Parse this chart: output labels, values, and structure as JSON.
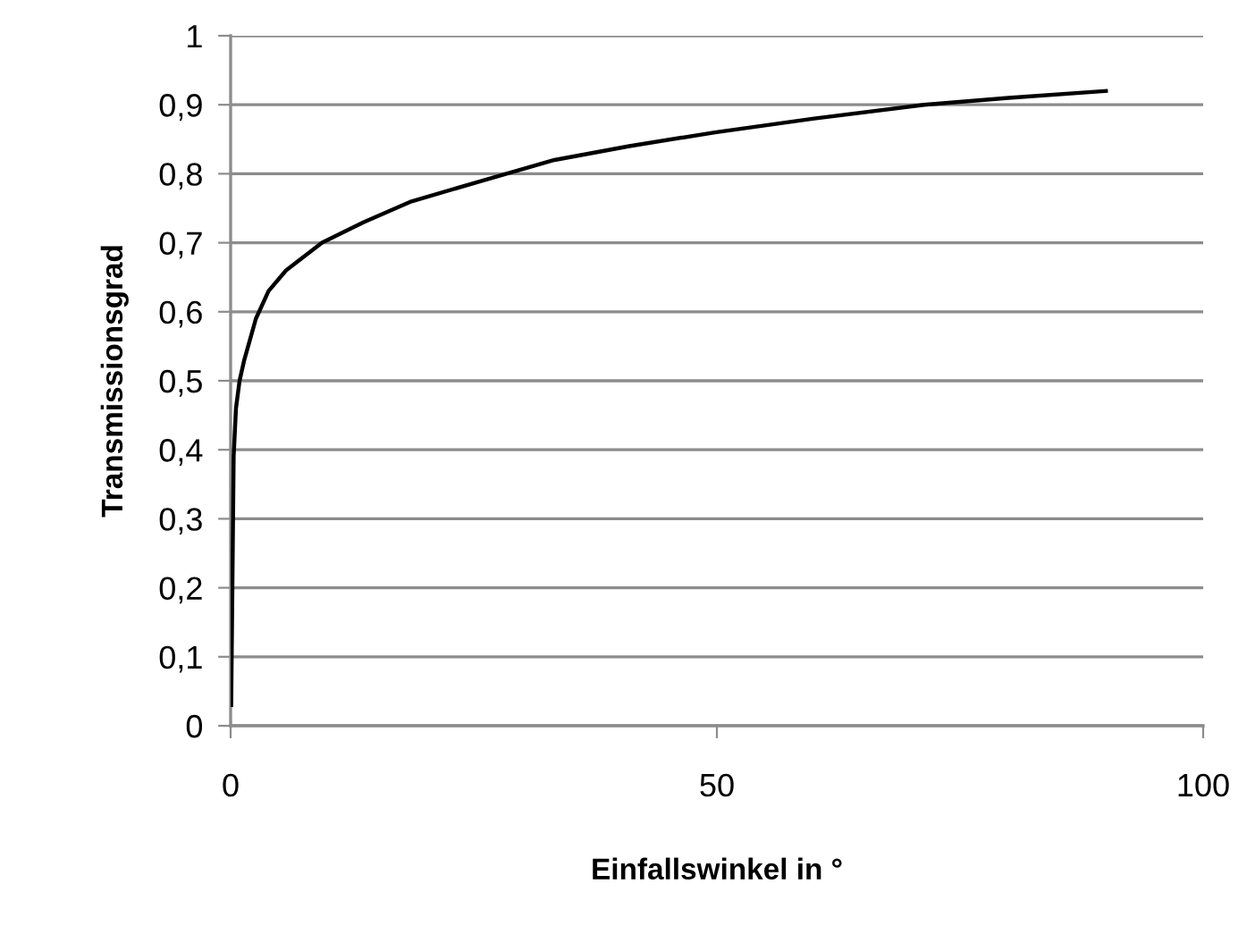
{
  "chart_data": {
    "type": "line",
    "xlabel": "Einfallswinkel in °",
    "ylabel": "Transmissionsgrad",
    "series": [
      {
        "color": "#000000",
        "x": [
          0.06,
          0.18,
          0.31,
          0.55,
          0.92,
          1.4,
          2.6,
          3.9,
          5.7,
          9.4,
          13.7,
          18.6,
          25.9,
          33.3,
          41,
          49.8,
          60,
          71.3,
          80,
          90
        ],
        "values": [
          0.03,
          0.2,
          0.39,
          0.46,
          0.5,
          0.53,
          0.59,
          0.63,
          0.66,
          0.7,
          0.73,
          0.76,
          0.79,
          0.82,
          0.84,
          0.86,
          0.88,
          0.9,
          0.91,
          0.92
        ]
      }
    ],
    "xlim": [
      0,
      100
    ],
    "xticks": [
      0,
      50,
      100
    ],
    "ylim": [
      0,
      1
    ],
    "yticks": [
      {
        "value": 0,
        "label": "0"
      },
      {
        "value": 0.1,
        "label": "0,1"
      },
      {
        "value": 0.2,
        "label": "0,2"
      },
      {
        "value": 0.3,
        "label": "0,3"
      },
      {
        "value": 0.4,
        "label": "0,4"
      },
      {
        "value": 0.5,
        "label": "0,5"
      },
      {
        "value": 0.6,
        "label": "0,6"
      },
      {
        "value": 0.7,
        "label": "0,7"
      },
      {
        "value": 0.8,
        "label": "0,8"
      },
      {
        "value": 0.9,
        "label": "0,9"
      },
      {
        "value": 1,
        "label": "1"
      }
    ],
    "grid": "y",
    "marker": "none",
    "line_style": "solid"
  }
}
